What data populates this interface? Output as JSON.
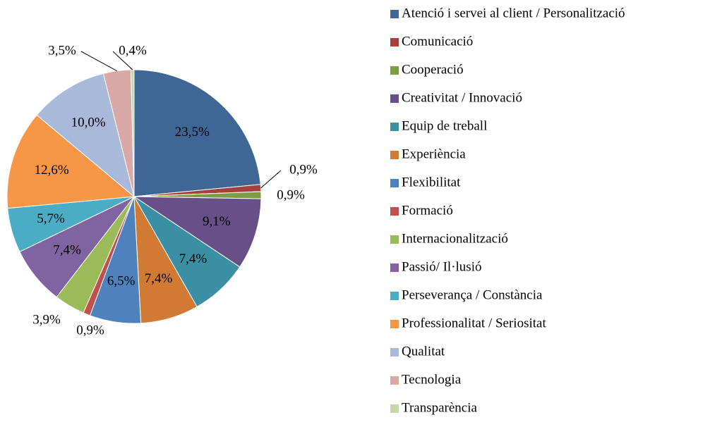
{
  "chart_data": {
    "type": "pie",
    "categories": [
      "Atenció i servei al client / Personalització",
      "Comunicació",
      "Cooperació",
      "Creativitat / Innovació",
      "Equip de treball",
      "Experiència",
      "Flexibilitat",
      "Formació",
      "Internacionalització",
      "Passió/ Il·lusió",
      "Perseverança / Constància",
      "Professionalitat / Seriositat",
      "Qualitat",
      "Tecnologia",
      "Transparència"
    ],
    "values": [
      23.5,
      0.9,
      0.9,
      9.1,
      7.4,
      7.4,
      6.5,
      0.9,
      3.9,
      7.4,
      5.7,
      12.6,
      10.0,
      3.5,
      0.4
    ],
    "value_labels": [
      "23,5%",
      "0,9%",
      "0,9%",
      "9,1%",
      "7,4%",
      "7,4%",
      "6,5%",
      "0,9%",
      "3,9%",
      "7,4%",
      "5,7%",
      "12,6%",
      "10,0%",
      "3,5%",
      "0,4%"
    ],
    "colors": [
      "#3E6796",
      "#A4403D",
      "#7E9C45",
      "#674F87",
      "#3A8FA5",
      "#D07A33",
      "#4F81BD",
      "#C0504D",
      "#9BBB59",
      "#8064A2",
      "#4BACC6",
      "#F79646",
      "#A9B9D9",
      "#D9A9A8",
      "#C6D8A9"
    ],
    "legend": "right"
  }
}
